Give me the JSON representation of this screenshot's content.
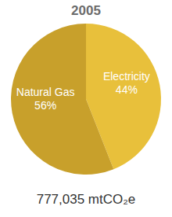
{
  "chart_data": {
    "type": "pie",
    "title": "2005",
    "caption": "777,035 mtCO₂e",
    "categories": [
      "Electricity",
      "Natural Gas"
    ],
    "values": [
      44,
      56
    ],
    "value_labels": [
      "44%",
      "56%"
    ],
    "colors": [
      "#e8c03b",
      "#c8a02b"
    ],
    "data_labels": true
  }
}
